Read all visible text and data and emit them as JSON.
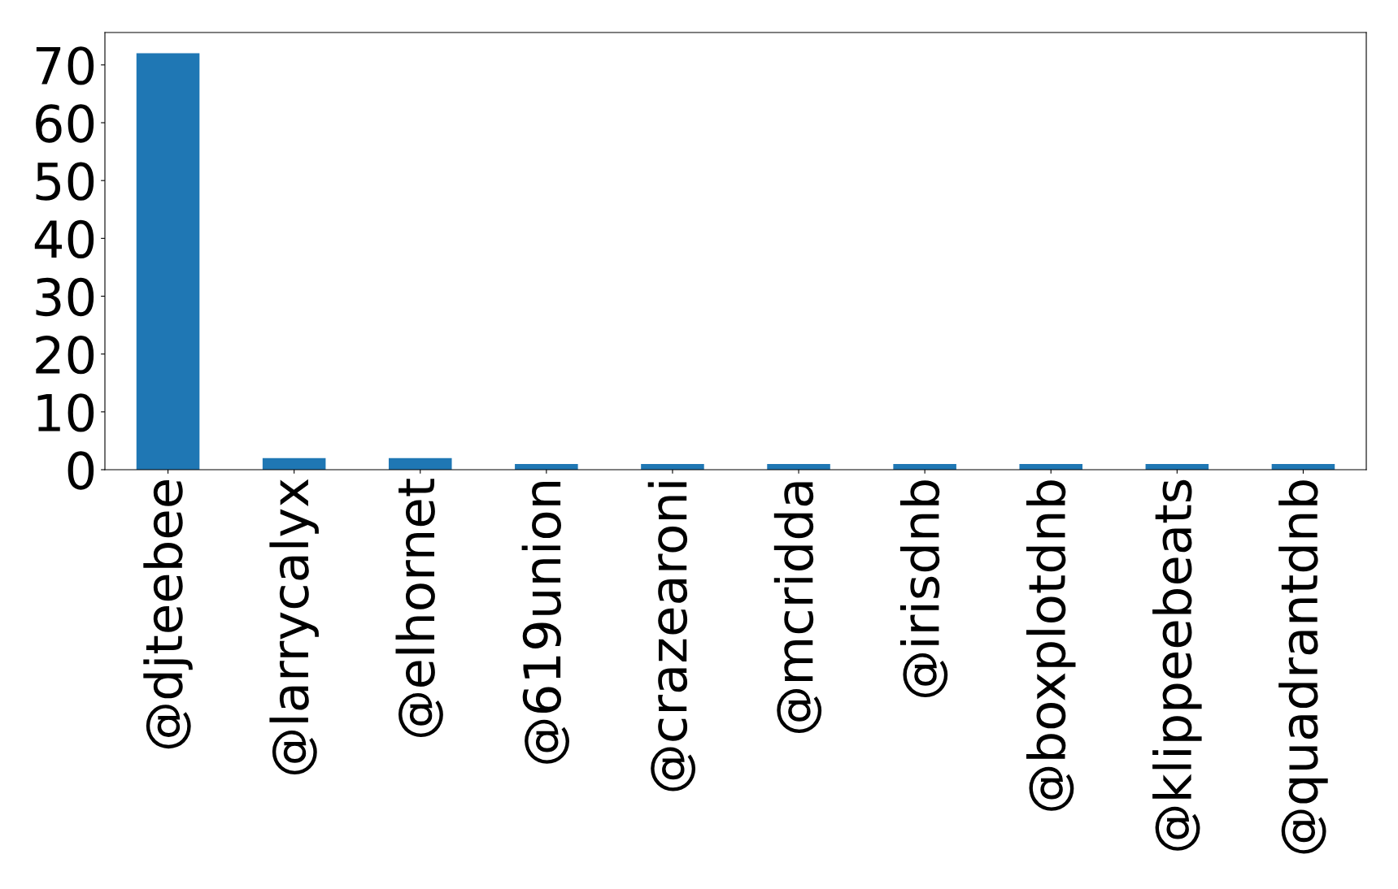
{
  "chart_data": {
    "type": "bar",
    "categories": [
      "@djteebee",
      "@larrycalyx",
      "@elhornet",
      "@619union",
      "@crazearoni",
      "@mcridda",
      "@irisdnb",
      "@boxplotdnb",
      "@klippeebeats",
      "@quadrantdnb"
    ],
    "values": [
      72,
      2,
      2,
      1,
      1,
      1,
      1,
      1,
      1,
      1
    ],
    "color": "#1f77b4",
    "ylim": [
      0,
      75.6
    ],
    "yticks": [
      0,
      10,
      20,
      30,
      40,
      50,
      60,
      70
    ]
  }
}
